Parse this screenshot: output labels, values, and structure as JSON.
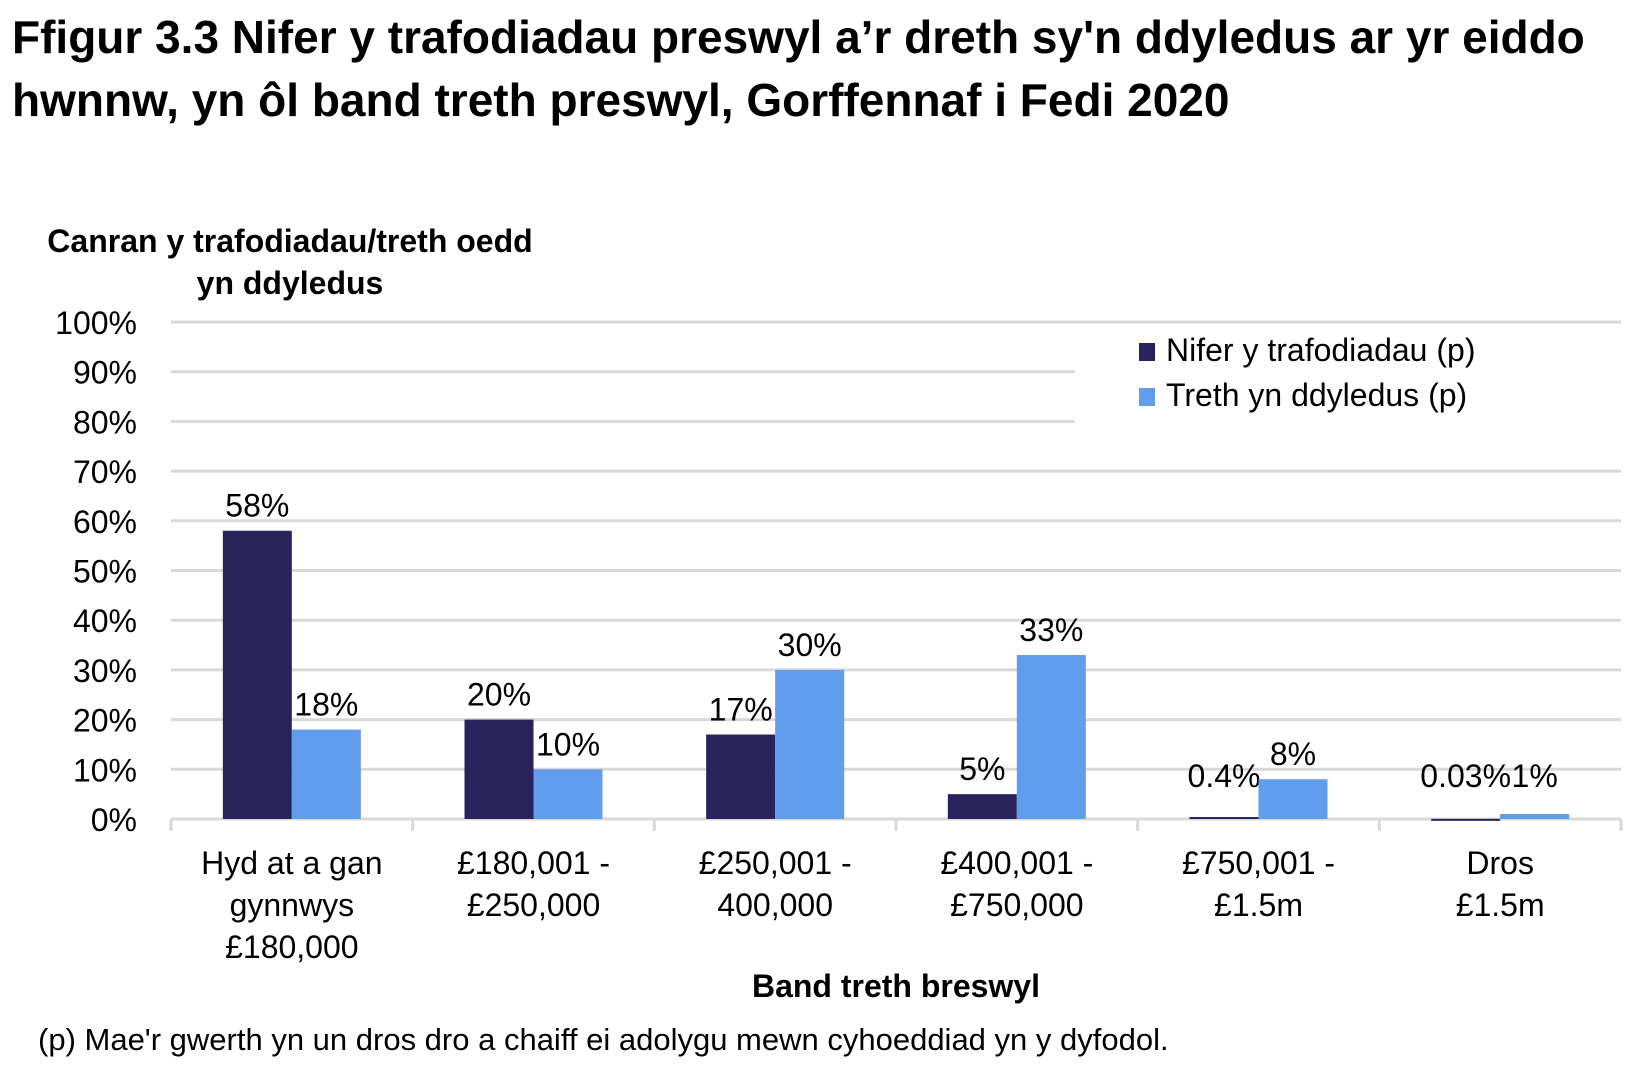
{
  "title": "Ffigur 3.3  Nifer y trafodiadau preswyl a’r dreth sy'n ddyledus ar yr eiddo hwnnw, yn ôl band treth preswyl, Gorffennaf i Fedi 2020",
  "note": "(p) Mae'r gwerth yn un dros dro a chaiff ei adolygu mewn cyhoeddiad yn y dyfodol.",
  "chart_data": {
    "type": "bar",
    "title": "Ffigur 3.3  Nifer y trafodiadau preswyl a’r dreth sy'n ddyledus ar yr eiddo hwnnw, yn ôl band treth preswyl, Gorffennaf i Fedi 2020",
    "ylabel": "Canran y trafodiadau/treth oedd yn ddyledus",
    "xlabel": "Band treth breswyl",
    "ylim": [
      0,
      100
    ],
    "yticks": [
      "0%",
      "10%",
      "20%",
      "30%",
      "40%",
      "50%",
      "60%",
      "70%",
      "80%",
      "90%",
      "100%"
    ],
    "grid": true,
    "legend_position": "top-right",
    "categories": [
      [
        "Hyd at a gan",
        "gynnwys",
        "£180,000"
      ],
      [
        "£180,001 -",
        "£250,000"
      ],
      [
        "£250,001 -",
        "400,000"
      ],
      [
        "£400,001 -",
        "£750,000"
      ],
      [
        "£750,001 -",
        "£1.5m"
      ],
      [
        "Dros",
        "£1.5m"
      ]
    ],
    "series": [
      {
        "name": "Nifer y trafodiadau (p)",
        "color": "#29235c",
        "values": [
          58,
          20,
          17,
          5,
          0.4,
          0.03
        ],
        "labels": [
          "58%",
          "20%",
          "17%",
          "5%",
          "0.4%",
          "0.03%"
        ]
      },
      {
        "name": "Treth yn ddyledus (p)",
        "color": "#629ced",
        "values": [
          18,
          10,
          30,
          33,
          8,
          1
        ],
        "labels": [
          "18%",
          "10%",
          "30%",
          "33%",
          "8%",
          "1%"
        ]
      }
    ],
    "colors": {
      "grid": "#d9d9d9",
      "axis": "#d9d9d9"
    }
  }
}
